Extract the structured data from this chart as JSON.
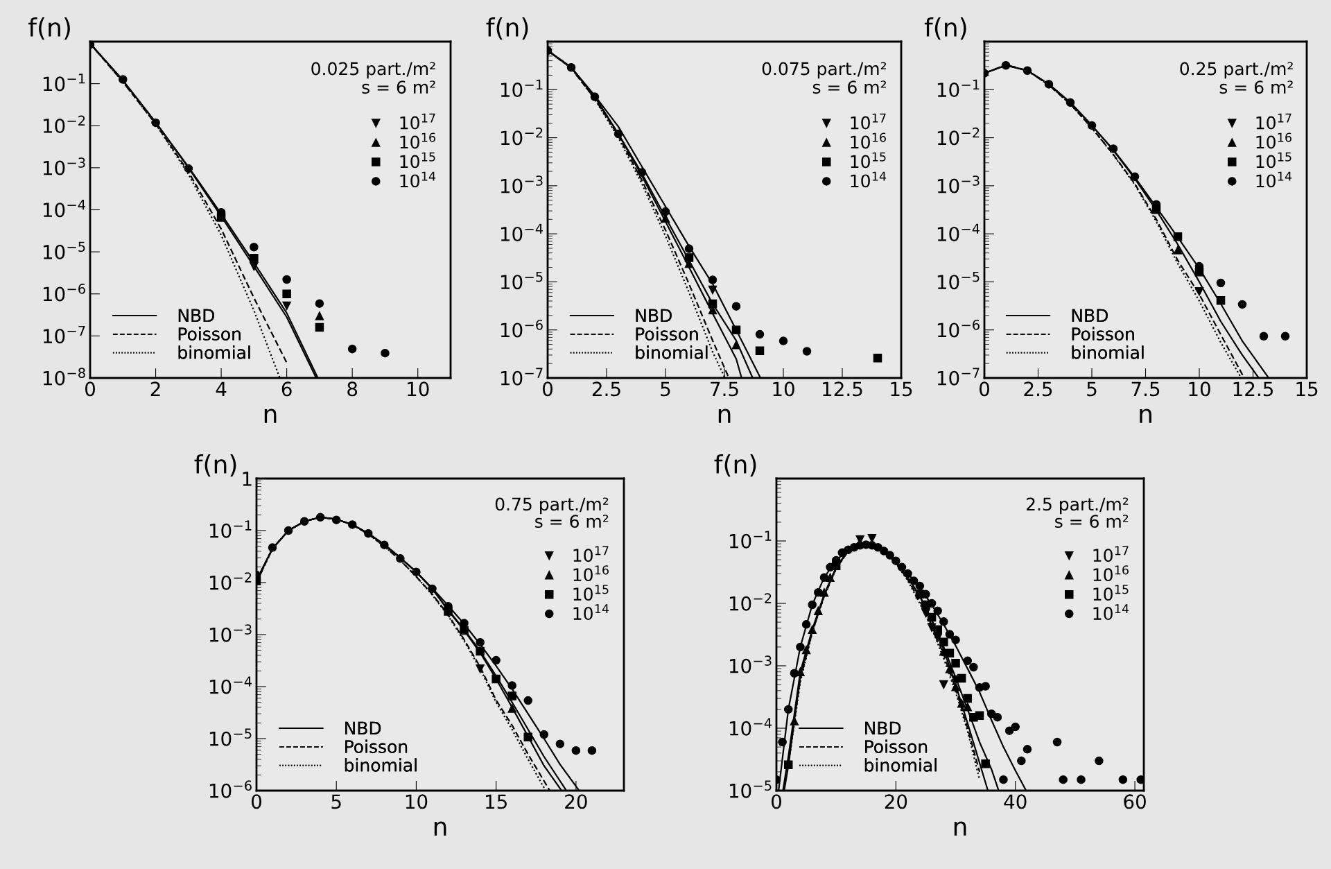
{
  "chart_data": [
    {
      "type": "scatter",
      "xlabel": "n",
      "ylabel": "f(n)",
      "log": true,
      "legend": [
        "top right",
        "bottom left"
      ],
      "grid": false,
      "xlim": [
        0,
        11
      ],
      "xticks": [
        0,
        2,
        4,
        6,
        8,
        10
      ],
      "ylim": [
        1e-08,
        1
      ],
      "yticks": [
        {
          "value": 0.1,
          "label": "10$^{−1}$"
        },
        {
          "value": 0.01,
          "label": "10$^{−2}$"
        },
        {
          "value": 0.001,
          "label": "10$^{−3}$"
        },
        {
          "value": 0.0001,
          "label": "10$^{−4}$"
        },
        {
          "value": 1e-05,
          "label": "10$^{−5}$"
        },
        {
          "value": 1e-06,
          "label": "10$^{−6}$"
        },
        {
          "value": 1e-07,
          "label": "10$^{−7}$"
        },
        {
          "value": 1e-08,
          "label": "10$^{−8}$"
        }
      ],
      "annotations": [
        "0.025 part./m²",
        "s = 6 m²"
      ],
      "series": [
        {
          "type": "line",
          "name": "NBD",
          "line_style": "solid",
          "marker": "none",
          "color": "#000000",
          "x": [
            0,
            1,
            2,
            3,
            4,
            5,
            6,
            6.9
          ],
          "values": [
            0.9,
            0.12,
            0.012,
            0.001,
            7e-05,
            4.5e-06,
            2.8e-07,
            1e-08
          ]
        },
        {
          "type": "line",
          "line_style": "solid",
          "marker": "none",
          "color": "#000000",
          "x": [
            0,
            1,
            2,
            3,
            4,
            5,
            6,
            6.95
          ],
          "values": [
            0.9,
            0.12,
            0.012,
            0.00105,
            8e-05,
            5.5e-06,
            3.5e-07,
            1e-08
          ]
        },
        {
          "type": "line",
          "name": "Poisson",
          "line_style": "dashed",
          "marker": "none",
          "color": "#000000",
          "x": [
            0,
            1,
            2,
            3,
            4,
            5,
            6
          ],
          "values": [
            0.9,
            0.11,
            0.011,
            0.0008,
            3.5e-05,
            8e-07,
            2.3e-08
          ]
        },
        {
          "type": "line",
          "name": "binomial",
          "line_style": "dotted",
          "marker": "none",
          "color": "#000000",
          "x": [
            0,
            1,
            2,
            3,
            4,
            5,
            5.79
          ],
          "values": [
            0.9,
            0.11,
            0.011,
            0.0007,
            2.5e-05,
            4e-07,
            1e-08
          ]
        },
        {
          "name": "10$^{17}$",
          "color": "#000000",
          "x": [
            5,
            6
          ],
          "values": [
            4.5e-06,
            5.2e-07
          ]
        },
        {
          "name": "10$^{16}$",
          "marker": "triangle",
          "color": "#000000",
          "x": [
            7
          ],
          "values": [
            3e-07
          ]
        },
        {
          "name": "10$^{15}$",
          "marker": "square",
          "color": "#000000",
          "x": [
            4,
            5,
            6,
            7
          ],
          "values": [
            6.6e-05,
            7.1e-06,
            1e-06,
            1.6e-07
          ]
        },
        {
          "name": "10$^{14}$",
          "marker": "circle",
          "color": "#000000",
          "x": [
            0,
            1,
            2,
            3,
            4,
            5,
            6,
            7,
            8,
            9
          ],
          "values": [
            0.85,
            0.126,
            0.0118,
            0.00096,
            8.7e-05,
            1.3e-05,
            2.2e-06,
            5.9e-07,
            4.9e-08,
            3.9e-08
          ]
        }
      ]
    },
    {
      "type": "scatter",
      "xlabel": "n",
      "ylabel": "f(n)",
      "log": true,
      "legend": [
        "top right",
        "bottom left"
      ],
      "grid": false,
      "xlim": [
        0,
        15
      ],
      "xticks": [
        0,
        2.5,
        5,
        7.5,
        10,
        12.5,
        15
      ],
      "ylim": [
        1e-07,
        1
      ],
      "yticks": [
        {
          "value": 0.1,
          "label": "10$^{−1}$"
        },
        {
          "value": 0.01,
          "label": "10$^{−2}$"
        },
        {
          "value": 0.001,
          "label": "10$^{−3}$"
        },
        {
          "value": 0.0001,
          "label": "10$^{−4}$"
        },
        {
          "value": 1e-05,
          "label": "10$^{−5}$"
        },
        {
          "value": 1e-06,
          "label": "10$^{−6}$"
        },
        {
          "value": 1e-07,
          "label": "10$^{−7}$"
        }
      ],
      "annotations": [
        "0.075 part./m²",
        "s = 6 m²"
      ],
      "series": [
        {
          "type": "line",
          "name": "NBD",
          "line_style": "solid",
          "marker": "none",
          "color": "#000000",
          "x": [
            0,
            1,
            2,
            3,
            4,
            5,
            6,
            7,
            8,
            9.03
          ],
          "values": [
            0.65,
            0.29,
            0.075,
            0.017,
            0.0025,
            0.00037,
            5.5e-05,
            9e-06,
            1e-06,
            1e-07
          ]
        },
        {
          "type": "line",
          "line_style": "solid",
          "marker": "none",
          "color": "#000000",
          "x": [
            0,
            1,
            2,
            3,
            4,
            5,
            6,
            7,
            8,
            8.7
          ],
          "values": [
            0.65,
            0.29,
            0.072,
            0.012,
            0.0018,
            0.00022,
            2.8e-05,
            3.5e-06,
            6e-07,
            1e-07
          ]
        },
        {
          "type": "line",
          "line_style": "solid",
          "marker": "none",
          "color": "#000000",
          "x": [
            0,
            1,
            2,
            3,
            4,
            5,
            6,
            7,
            8,
            8.23
          ],
          "values": [
            0.65,
            0.29,
            0.07,
            0.012,
            0.0016,
            0.00018,
            2e-05,
            2.2e-06,
            2.5e-07,
            1e-07
          ]
        },
        {
          "type": "line",
          "name": "Poisson",
          "line_style": "dashed",
          "marker": "none",
          "color": "#000000",
          "x": [
            0,
            1,
            2,
            3,
            4,
            5,
            6,
            7,
            7.69
          ],
          "values": [
            0.65,
            0.28,
            0.065,
            0.011,
            0.0013,
            0.00012,
            9e-06,
            6e-07,
            1e-07
          ]
        },
        {
          "type": "line",
          "name": "binomial",
          "line_style": "dotted",
          "marker": "none",
          "color": "#000000",
          "x": [
            0,
            1,
            2,
            3,
            4,
            5,
            6,
            7,
            7.52
          ],
          "values": [
            0.65,
            0.28,
            0.063,
            0.01,
            0.0011,
            9e-05,
            6e-06,
            3.5e-07,
            1e-07
          ]
        },
        {
          "name": "10$^{17}$",
          "color": "#000000",
          "x": [
            7
          ],
          "values": [
            6.8e-06
          ]
        },
        {
          "name": "10$^{16}$",
          "marker": "triangle",
          "color": "#000000",
          "x": [
            5,
            6,
            7,
            8
          ],
          "values": [
            0.00021,
            2.4e-05,
            2.6e-06,
            4.9e-07
          ]
        },
        {
          "name": "10$^{15}$",
          "marker": "square",
          "color": "#000000",
          "x": [
            6,
            7,
            8,
            9,
            14
          ],
          "values": [
            3.2e-05,
            3.5e-06,
            1e-06,
            3.7e-07,
            2.6e-07
          ]
        },
        {
          "name": "10$^{14}$",
          "marker": "circle",
          "color": "#000000",
          "x": [
            0,
            1,
            2,
            3,
            4,
            5,
            6,
            7,
            8,
            9,
            10,
            11
          ],
          "values": [
            0.65,
            0.29,
            0.071,
            0.012,
            0.0019,
            0.00029,
            4.9e-05,
            1.1e-05,
            3.1e-06,
            8.1e-07,
            5.9e-07,
            3.6e-07
          ]
        }
      ]
    },
    {
      "type": "scatter",
      "xlabel": "n",
      "ylabel": "f(n)",
      "log": true,
      "legend": [
        "top right",
        "bottom left"
      ],
      "grid": false,
      "xlim": [
        0,
        15
      ],
      "xticks": [
        0,
        2.5,
        5,
        7.5,
        10,
        12.5,
        15
      ],
      "ylim": [
        1e-07,
        1
      ],
      "yticks": [
        {
          "value": 0.1,
          "label": "10$^{−1}$"
        },
        {
          "value": 0.01,
          "label": "10$^{−2}$"
        },
        {
          "value": 0.001,
          "label": "10$^{−3}$"
        },
        {
          "value": 0.0001,
          "label": "10$^{−4}$"
        },
        {
          "value": 1e-05,
          "label": "10$^{−5}$"
        },
        {
          "value": 1e-06,
          "label": "10$^{−6}$"
        },
        {
          "value": 1e-07,
          "label": "10$^{−7}$"
        }
      ],
      "annotations": [
        "0.25 part./m²",
        "s = 6 m²"
      ],
      "series": [
        {
          "type": "line",
          "name": "NBD",
          "line_style": "solid",
          "marker": "none",
          "color": "#000000",
          "x": [
            0,
            1,
            2,
            3,
            4,
            5,
            6,
            7,
            8,
            9,
            10,
            11,
            12,
            13.23
          ],
          "values": [
            0.22,
            0.32,
            0.25,
            0.13,
            0.054,
            0.018,
            0.0056,
            0.0015,
            0.00036,
            8.5e-05,
            1.9e-05,
            3.5e-06,
            5.9e-07,
            1e-07
          ]
        },
        {
          "type": "line",
          "line_style": "solid",
          "marker": "none",
          "color": "#000000",
          "x": [
            0,
            1,
            2,
            3,
            4,
            5,
            6,
            7,
            8,
            9,
            10,
            11,
            12,
            12.77
          ],
          "values": [
            0.22,
            0.32,
            0.25,
            0.13,
            0.054,
            0.018,
            0.0055,
            0.0014,
            0.00031,
            6e-05,
            1e-05,
            1.5e-06,
            3e-07,
            1e-07
          ]
        },
        {
          "type": "line",
          "name": "Poisson",
          "line_style": "dashed",
          "marker": "none",
          "color": "#000000",
          "x": [
            0,
            1,
            2,
            3,
            4,
            5,
            6,
            7,
            8,
            9,
            10,
            11,
            12.09
          ],
          "values": [
            0.22,
            0.33,
            0.25,
            0.125,
            0.05,
            0.016,
            0.0045,
            0.0011,
            0.0002,
            2.8e-05,
            5.5e-06,
            8e-07,
            1e-07
          ]
        },
        {
          "type": "line",
          "name": "binomial",
          "line_style": "dotted",
          "marker": "none",
          "color": "#000000",
          "x": [
            0,
            1,
            2,
            3,
            4,
            5,
            6,
            7,
            8,
            9,
            10,
            11,
            11.95
          ],
          "values": [
            0.22,
            0.33,
            0.25,
            0.125,
            0.05,
            0.016,
            0.0044,
            0.00105,
            0.00018,
            2.4e-05,
            4e-06,
            5.5e-07,
            1e-07
          ]
        },
        {
          "name": "10$^{17}$",
          "color": "#000000",
          "x": [
            10
          ],
          "values": [
            6.3e-06
          ]
        },
        {
          "name": "10$^{16}$",
          "marker": "triangle",
          "color": "#000000",
          "x": [
            9
          ],
          "values": [
            4.6e-05
          ]
        },
        {
          "name": "10$^{15}$",
          "marker": "square",
          "color": "#000000",
          "x": [
            8,
            9,
            10,
            11
          ],
          "values": [
            0.00032,
            8.7e-05,
            1.6e-05,
            4.1e-06
          ]
        },
        {
          "name": "10$^{14}$",
          "marker": "circle",
          "color": "#000000",
          "x": [
            0,
            1,
            2,
            3,
            4,
            5,
            6,
            7,
            8,
            10,
            11,
            12,
            13,
            14
          ],
          "values": [
            0.22,
            0.32,
            0.25,
            0.13,
            0.054,
            0.018,
            0.0059,
            0.00155,
            0.00041,
            2.1e-05,
            9.5e-06,
            3.4e-06,
            7.4e-07,
            7.4e-07
          ]
        }
      ]
    },
    {
      "type": "scatter",
      "xlabel": "n",
      "ylabel": "f(n)",
      "log": true,
      "legend": [
        "top right",
        "bottom left"
      ],
      "grid": false,
      "xlim": [
        0,
        23
      ],
      "xticks": [
        0,
        5,
        10,
        15,
        20
      ],
      "ylim": [
        1e-06,
        1
      ],
      "yticks": [
        {
          "value": 1,
          "label": "1"
        },
        {
          "value": 0.1,
          "label": "10$^{−1}$"
        },
        {
          "value": 0.01,
          "label": "10$^{−2}$"
        },
        {
          "value": 0.001,
          "label": "10$^{−3}$"
        },
        {
          "value": 0.0001,
          "label": "10$^{−4}$"
        },
        {
          "value": 1e-05,
          "label": "10$^{−5}$"
        },
        {
          "value": 1e-06,
          "label": "10$^{−6}$"
        }
      ],
      "annotations": [
        "0.75 part./m²",
        "s = 6 m²"
      ],
      "series": [
        {
          "type": "line",
          "name": "NBD",
          "line_style": "solid",
          "marker": "none",
          "color": "#000000",
          "x": [
            0,
            1,
            2,
            3,
            4,
            5,
            6,
            7,
            8,
            9,
            10,
            11,
            12,
            13,
            14,
            15,
            16,
            17,
            18,
            19,
            20.2
          ],
          "values": [
            0.011,
            0.045,
            0.1,
            0.15,
            0.18,
            0.165,
            0.13,
            0.088,
            0.054,
            0.03,
            0.016,
            0.0078,
            0.0036,
            0.0016,
            0.00065,
            0.00025,
            9e-05,
            3e-05,
            1e-05,
            3.2e-06,
            1e-06
          ]
        },
        {
          "type": "line",
          "line_style": "solid",
          "marker": "none",
          "color": "#000000",
          "x": [
            0,
            1,
            2,
            3,
            4,
            5,
            6,
            7,
            8,
            9,
            10,
            11,
            12,
            13,
            14,
            15,
            16,
            17,
            18,
            19.4
          ],
          "values": [
            0.011,
            0.045,
            0.1,
            0.15,
            0.18,
            0.165,
            0.13,
            0.088,
            0.054,
            0.03,
            0.016,
            0.0076,
            0.003,
            0.00125,
            0.00048,
            0.00016,
            5e-05,
            1.5e-05,
            4.5e-06,
            1e-06
          ]
        },
        {
          "type": "line",
          "line_style": "solid",
          "marker": "none",
          "color": "#000000",
          "x": [
            0,
            1,
            2,
            3,
            4,
            5,
            6,
            7,
            8,
            9,
            10,
            11,
            12,
            13,
            14,
            15,
            16,
            17,
            18,
            19.1
          ],
          "values": [
            0.011,
            0.045,
            0.1,
            0.15,
            0.18,
            0.165,
            0.13,
            0.088,
            0.054,
            0.03,
            0.016,
            0.0076,
            0.0029,
            0.0012,
            0.00045,
            0.00014,
            4e-05,
            1.1e-05,
            3e-06,
            1e-06
          ]
        },
        {
          "type": "line",
          "name": "Poisson",
          "line_style": "dashed",
          "marker": "none",
          "color": "#000000",
          "x": [
            0,
            1,
            2,
            3,
            4,
            5,
            6,
            7,
            8,
            9,
            10,
            11,
            12,
            13,
            14,
            15,
            16,
            17,
            18.36
          ],
          "values": [
            0.01,
            0.045,
            0.1,
            0.15,
            0.18,
            0.165,
            0.13,
            0.085,
            0.05,
            0.027,
            0.013,
            0.006,
            0.0024,
            0.0008,
            0.00024,
            5.5e-05,
            1.8e-05,
            5e-06,
            1e-06
          ]
        },
        {
          "type": "line",
          "name": "binomial",
          "line_style": "dotted",
          "marker": "none",
          "color": "#000000",
          "x": [
            0,
            1,
            2,
            3,
            4,
            5,
            6,
            7,
            8,
            9,
            10,
            11,
            12,
            13,
            14,
            15,
            16,
            17,
            18.1
          ],
          "values": [
            0.01,
            0.045,
            0.1,
            0.15,
            0.18,
            0.165,
            0.13,
            0.085,
            0.05,
            0.027,
            0.013,
            0.0058,
            0.0023,
            0.00075,
            0.00022,
            5e-05,
            1.5e-05,
            4e-06,
            1e-06
          ]
        },
        {
          "name": "10$^{17}$",
          "color": "#000000",
          "x": [
            14
          ],
          "values": [
            0.00022
          ]
        },
        {
          "name": "10$^{16}$",
          "marker": "triangle",
          "color": "#000000",
          "x": [
            16
          ],
          "values": [
            3.8e-05
          ]
        },
        {
          "name": "10$^{15}$",
          "marker": "square",
          "color": "#000000",
          "x": [
            0,
            12,
            13,
            14,
            15,
            16,
            17
          ],
          "values": [
            0.011,
            0.0028,
            0.0012,
            0.00048,
            0.00014,
            6.6e-05,
            1.07e-05
          ]
        },
        {
          "name": "10$^{14}$",
          "marker": "circle",
          "color": "#000000",
          "x": [
            0,
            1,
            2,
            3,
            4,
            5,
            6,
            7,
            8,
            9,
            10,
            11,
            12,
            13,
            14,
            15,
            16,
            17,
            18,
            19,
            20,
            21
          ],
          "values": [
            0.014,
            0.047,
            0.1,
            0.15,
            0.18,
            0.16,
            0.13,
            0.088,
            0.053,
            0.029,
            0.016,
            0.0076,
            0.0035,
            0.00166,
            0.00071,
            0.00032,
            0.000105,
            5.4e-05,
            1.2e-05,
            7.9e-06,
            5.9e-06,
            5.9e-06
          ]
        }
      ]
    },
    {
      "type": "scatter",
      "xlabel": "n",
      "ylabel": "f(n)",
      "log": true,
      "legend": [
        "top right",
        "bottom left"
      ],
      "grid": false,
      "xlim": [
        0,
        61.5
      ],
      "xticks": [
        0,
        20,
        40,
        60
      ],
      "ylim": [
        1e-05,
        1
      ],
      "yticks": [
        {
          "value": 0.1,
          "label": "10$^{−1}$"
        },
        {
          "value": 0.01,
          "label": "10$^{−2}$"
        },
        {
          "value": 0.001,
          "label": "10$^{−3}$"
        },
        {
          "value": 0.0001,
          "label": "10$^{−4}$"
        },
        {
          "value": 1e-05,
          "label": "10$^{−5}$"
        }
      ],
      "annotations": [
        "2.5 part./m²",
        "s = 6 m²"
      ],
      "series": [
        {
          "type": "line",
          "name": "NBD",
          "line_style": "solid",
          "marker": "none",
          "color": "#000000",
          "x": [
            0.36,
            2,
            4,
            6,
            8,
            10,
            12,
            14,
            16,
            18,
            20,
            22,
            24,
            26,
            28,
            30,
            32,
            34,
            36,
            38,
            40,
            41.8
          ],
          "values": [
            1e-05,
            0.0002,
            0.002,
            0.0095,
            0.026,
            0.049,
            0.072,
            0.085,
            0.085,
            0.069,
            0.048,
            0.03,
            0.018,
            0.0095,
            0.0046,
            0.0021,
            0.0009,
            0.00038,
            0.000135,
            5e-05,
            2.1e-05,
            1e-05
          ]
        },
        {
          "type": "line",
          "line_style": "solid",
          "marker": "none",
          "color": "#000000",
          "x": [
            1.1,
            2,
            4,
            6,
            8,
            10,
            12,
            14,
            16,
            18,
            20,
            22,
            24,
            26,
            28,
            30,
            32,
            34,
            36,
            37.2
          ],
          "values": [
            1e-05,
            3.5e-05,
            0.0008,
            0.0038,
            0.014,
            0.038,
            0.07,
            0.09,
            0.09,
            0.068,
            0.045,
            0.026,
            0.013,
            0.0055,
            0.002,
            0.00065,
            0.0002,
            6e-05,
            2.2e-05,
            1e-05
          ]
        },
        {
          "type": "line",
          "line_style": "solid",
          "marker": "none",
          "color": "#000000",
          "x": [
            1.3,
            2,
            4,
            6,
            8,
            10,
            12,
            14,
            16,
            18,
            20,
            22,
            24,
            26,
            28,
            30,
            32,
            34,
            35.4
          ],
          "values": [
            1e-05,
            2.5e-05,
            0.0007,
            0.0036,
            0.0135,
            0.037,
            0.07,
            0.09,
            0.09,
            0.068,
            0.045,
            0.026,
            0.013,
            0.0053,
            0.0018,
            0.0005,
            0.00012,
            2.8e-05,
            1e-05
          ]
        },
        {
          "type": "line",
          "name": "Poisson",
          "line_style": "dashed",
          "marker": "none",
          "color": "#000000",
          "x": [
            2,
            4,
            6,
            8,
            10,
            12,
            14,
            16,
            18,
            20,
            22,
            24,
            26,
            28,
            30,
            32,
            34
          ],
          "values": [
            3e-05,
            0.0006,
            0.0035,
            0.013,
            0.036,
            0.068,
            0.09,
            0.092,
            0.07,
            0.045,
            0.024,
            0.011,
            0.0045,
            0.0015,
            0.00043,
            0.0001,
            2e-05
          ]
        },
        {
          "type": "line",
          "name": "binomial",
          "line_style": "dotted",
          "marker": "none",
          "color": "#000000",
          "x": [
            2,
            4,
            6,
            8,
            10,
            12,
            14,
            16,
            18,
            20,
            22,
            24,
            26,
            28,
            30,
            32,
            34
          ],
          "values": [
            2.5e-05,
            0.00055,
            0.0034,
            0.013,
            0.036,
            0.068,
            0.09,
            0.093,
            0.07,
            0.044,
            0.023,
            0.01,
            0.004,
            0.0013,
            0.00038,
            9e-05,
            1.5e-05
          ]
        },
        {
          "name": "10$^{17}$",
          "color": "#000000",
          "x": [
            14,
            16,
            25,
            26,
            27,
            28,
            30
          ],
          "values": [
            0.105,
            0.11,
            0.007,
            0.0041,
            0.0028,
            0.0005,
            0.0006
          ]
        },
        {
          "name": "10$^{16}$",
          "marker": "triangle",
          "color": "#000000",
          "x": [
            3,
            4,
            5,
            6,
            7,
            8,
            9,
            28,
            29,
            30,
            31,
            32
          ],
          "values": [
            0.00013,
            0.0008,
            0.0018,
            0.0038,
            0.0076,
            0.015,
            0.026,
            0.0017,
            0.00089,
            0.00046,
            0.00025,
            0.00022
          ]
        },
        {
          "name": "10$^{15}$",
          "marker": "square",
          "color": "#000000",
          "x": [
            2,
            10,
            24,
            25,
            26,
            27,
            28,
            29,
            30,
            31,
            32,
            33,
            34,
            35
          ],
          "values": [
            2.6e-05,
            0.04,
            0.014,
            0.0095,
            0.006,
            0.0038,
            0.0024,
            0.0016,
            0.0011,
            0.00063,
            0.0003,
            0.00015,
            0.00016,
            2.7e-05
          ]
        },
        {
          "name": "10$^{14}$",
          "marker": "circle",
          "color": "#000000",
          "x": [
            0,
            1,
            2,
            3,
            4,
            5,
            6,
            7,
            8,
            9,
            10,
            11,
            12,
            13,
            14,
            15,
            16,
            17,
            18,
            19,
            20,
            21,
            22,
            23,
            24,
            25,
            26,
            27,
            28,
            29,
            30,
            32,
            33,
            34,
            35,
            36,
            37,
            38,
            39,
            40,
            41,
            42,
            47,
            48,
            51,
            54,
            58,
            61
          ],
          "values": [
            1.5e-05,
            6e-05,
            0.0002,
            0.00076,
            0.002,
            0.0046,
            0.0095,
            0.015,
            0.026,
            0.038,
            0.049,
            0.065,
            0.072,
            0.079,
            0.085,
            0.087,
            0.085,
            0.079,
            0.069,
            0.059,
            0.048,
            0.038,
            0.03,
            0.023,
            0.019,
            0.014,
            0.01,
            0.0076,
            0.0051,
            0.0032,
            0.0026,
            0.0012,
            0.00095,
            0.00045,
            0.00047,
            0.00017,
            0.00015,
            1.5e-05,
            9.1e-05,
            0.000105,
            3e-05,
            4.6e-05,
            6e-05,
            1.5e-05,
            1.5e-05,
            3e-05,
            1.5e-05,
            1.5e-05
          ]
        }
      ]
    }
  ]
}
